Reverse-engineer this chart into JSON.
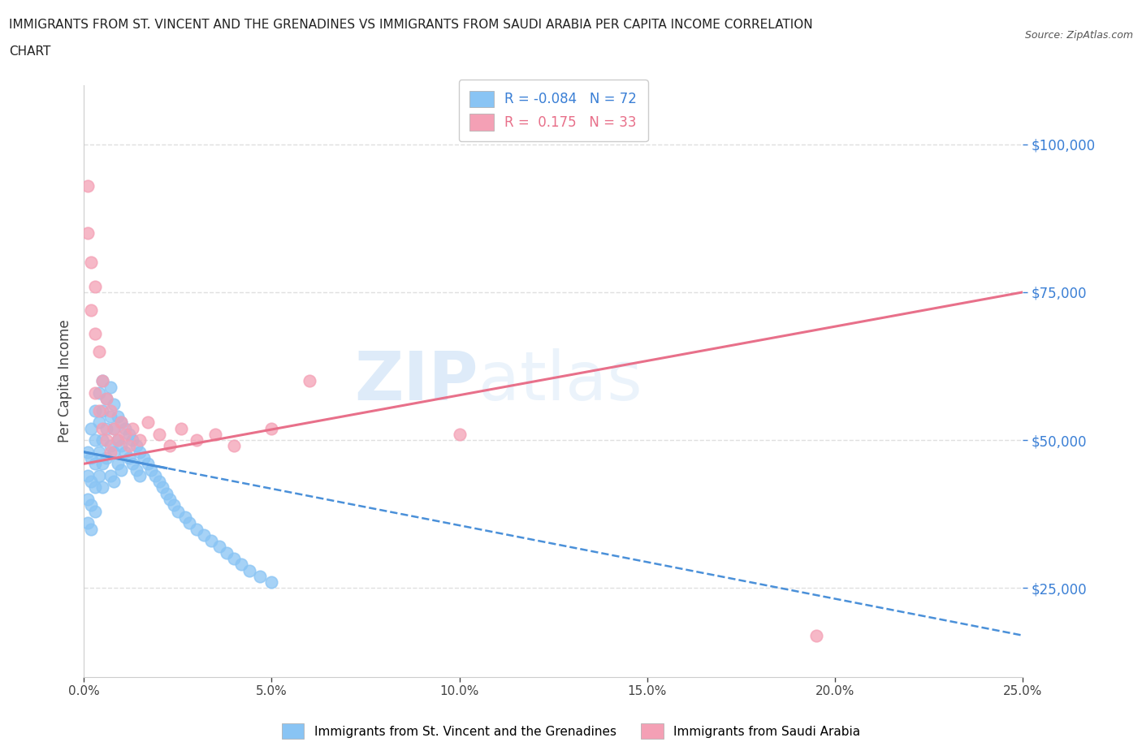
{
  "title_line1": "IMMIGRANTS FROM ST. VINCENT AND THE GRENADINES VS IMMIGRANTS FROM SAUDI ARABIA PER CAPITA INCOME CORRELATION",
  "title_line2": "CHART",
  "source": "Source: ZipAtlas.com",
  "ylabel": "Per Capita Income",
  "xlim": [
    0.0,
    0.25
  ],
  "ylim": [
    10000,
    110000
  ],
  "yticks": [
    25000,
    50000,
    75000,
    100000
  ],
  "ytick_labels": [
    "$25,000",
    "$50,000",
    "$75,000",
    "$100,000"
  ],
  "xticks": [
    0.0,
    0.05,
    0.1,
    0.15,
    0.2,
    0.25
  ],
  "xtick_labels": [
    "0.0%",
    "5.0%",
    "10.0%",
    "15.0%",
    "20.0%",
    "25.0%"
  ],
  "legend_labels": [
    "Immigrants from St. Vincent and the Grenadines",
    "Immigrants from Saudi Arabia"
  ],
  "blue_color": "#89c4f4",
  "pink_color": "#f4a0b5",
  "blue_line_color": "#4a90d9",
  "pink_line_color": "#e8708a",
  "R_blue": -0.084,
  "N_blue": 72,
  "R_pink": 0.175,
  "N_pink": 33,
  "watermark_zip": "ZIP",
  "watermark_atlas": "atlas",
  "background_color": "#ffffff",
  "grid_color": "#e0e0e0",
  "blue_scatter_x": [
    0.001,
    0.001,
    0.001,
    0.001,
    0.002,
    0.002,
    0.002,
    0.002,
    0.002,
    0.003,
    0.003,
    0.003,
    0.003,
    0.003,
    0.004,
    0.004,
    0.004,
    0.004,
    0.005,
    0.005,
    0.005,
    0.005,
    0.005,
    0.006,
    0.006,
    0.006,
    0.007,
    0.007,
    0.007,
    0.007,
    0.008,
    0.008,
    0.008,
    0.008,
    0.009,
    0.009,
    0.009,
    0.01,
    0.01,
    0.01,
    0.011,
    0.011,
    0.012,
    0.012,
    0.013,
    0.013,
    0.014,
    0.014,
    0.015,
    0.015,
    0.016,
    0.017,
    0.018,
    0.019,
    0.02,
    0.021,
    0.022,
    0.023,
    0.024,
    0.025,
    0.027,
    0.028,
    0.03,
    0.032,
    0.034,
    0.036,
    0.038,
    0.04,
    0.042,
    0.044,
    0.047,
    0.05
  ],
  "blue_scatter_y": [
    48000,
    44000,
    40000,
    36000,
    52000,
    47000,
    43000,
    39000,
    35000,
    55000,
    50000,
    46000,
    42000,
    38000,
    58000,
    53000,
    48000,
    44000,
    60000,
    55000,
    50000,
    46000,
    42000,
    57000,
    52000,
    47000,
    59000,
    54000,
    49000,
    44000,
    56000,
    52000,
    48000,
    43000,
    54000,
    50000,
    46000,
    53000,
    49000,
    45000,
    52000,
    48000,
    51000,
    47000,
    50000,
    46000,
    49000,
    45000,
    48000,
    44000,
    47000,
    46000,
    45000,
    44000,
    43000,
    42000,
    41000,
    40000,
    39000,
    38000,
    37000,
    36000,
    35000,
    34000,
    33000,
    32000,
    31000,
    30000,
    29000,
    28000,
    27000,
    26000
  ],
  "pink_scatter_x": [
    0.001,
    0.001,
    0.002,
    0.002,
    0.003,
    0.003,
    0.003,
    0.004,
    0.004,
    0.005,
    0.005,
    0.006,
    0.006,
    0.007,
    0.007,
    0.008,
    0.009,
    0.01,
    0.011,
    0.012,
    0.013,
    0.015,
    0.017,
    0.02,
    0.023,
    0.026,
    0.03,
    0.035,
    0.04,
    0.05,
    0.06,
    0.1,
    0.195
  ],
  "pink_scatter_y": [
    93000,
    85000,
    80000,
    72000,
    76000,
    68000,
    58000,
    65000,
    55000,
    60000,
    52000,
    57000,
    50000,
    55000,
    48000,
    52000,
    50000,
    53000,
    51000,
    49000,
    52000,
    50000,
    53000,
    51000,
    49000,
    52000,
    50000,
    51000,
    49000,
    52000,
    60000,
    51000,
    17000
  ],
  "blue_trend_x0": 0.0,
  "blue_trend_y0": 48000,
  "blue_trend_x1": 0.25,
  "blue_trend_y1": 17000,
  "pink_trend_x0": 0.0,
  "pink_trend_y0": 46000,
  "pink_trend_x1": 0.25,
  "pink_trend_y1": 75000
}
